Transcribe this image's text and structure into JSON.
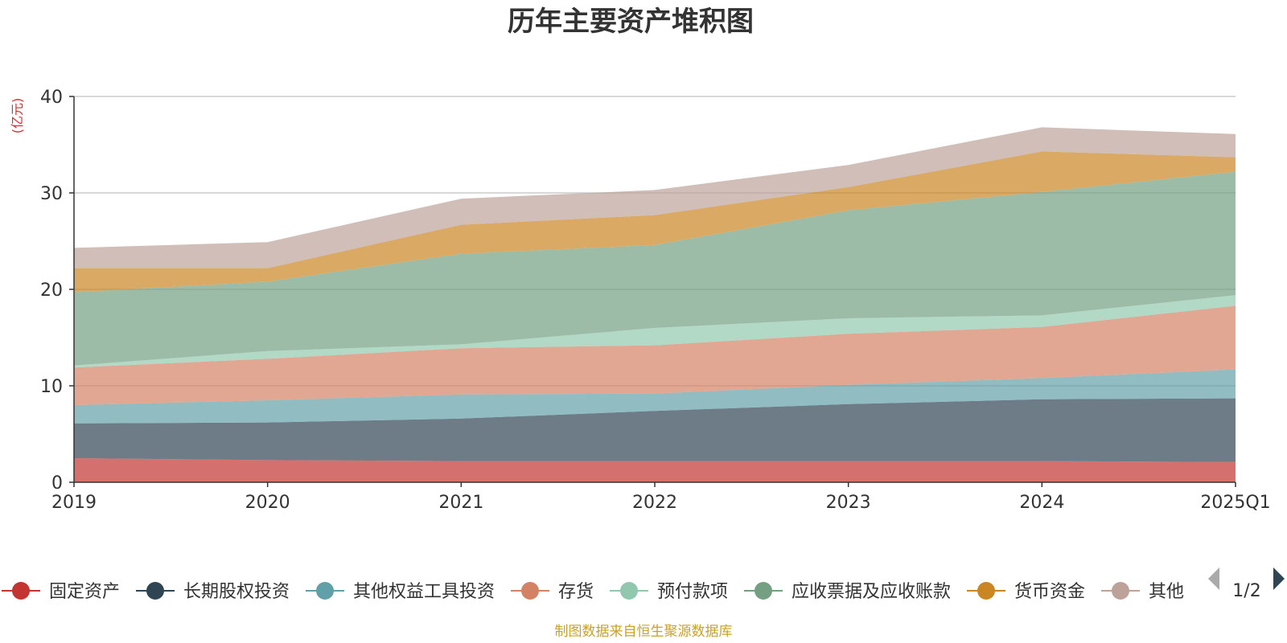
{
  "chart_data": {
    "type": "area",
    "stacked": true,
    "title": "历年主要资产堆积图",
    "unit_label": "(亿元)",
    "categories": [
      "2019",
      "2020",
      "2021",
      "2022",
      "2023",
      "2024",
      "2025Q1"
    ],
    "ylim": [
      0,
      40
    ],
    "y_ticks": [
      0,
      10,
      20,
      30,
      40
    ],
    "grid": true,
    "series": [
      {
        "name": "固定资产",
        "values": [
          2.5,
          2.3,
          2.2,
          2.2,
          2.2,
          2.2,
          2.1
        ],
        "color": "#c23531"
      },
      {
        "name": "长期股权投资",
        "values": [
          3.6,
          3.9,
          4.4,
          5.2,
          5.9,
          6.4,
          6.6
        ],
        "color": "#2f4554"
      },
      {
        "name": "其他权益工具投资",
        "values": [
          1.9,
          2.3,
          2.5,
          1.8,
          2.0,
          2.2,
          3.0
        ],
        "color": "#61a0a8"
      },
      {
        "name": "存货",
        "values": [
          3.9,
          4.3,
          4.8,
          5.0,
          5.3,
          5.3,
          6.6
        ],
        "color": "#d48265"
      },
      {
        "name": "预付款项",
        "values": [
          0.2,
          0.8,
          0.4,
          1.8,
          1.6,
          1.2,
          1.1
        ],
        "color": "#91c7ae"
      },
      {
        "name": "应收票据及应收账款",
        "values": [
          7.6,
          7.2,
          9.4,
          8.6,
          11.2,
          12.8,
          12.8
        ],
        "color": "#749f83"
      },
      {
        "name": "货币资金",
        "values": [
          2.5,
          1.4,
          3.0,
          3.1,
          2.4,
          4.2,
          1.5
        ],
        "color": "#ca8622"
      },
      {
        "name": "其他",
        "values": [
          2.1,
          2.7,
          2.7,
          2.6,
          2.3,
          2.5,
          2.4
        ],
        "color": "#bda29a"
      }
    ],
    "legend_position": "bottom",
    "legend_page": "1/2",
    "source": "制图数据来自恒生聚源数据库"
  },
  "colors": {
    "axis": "#333333",
    "grid": "#cccccc",
    "source_text": "#c9a227",
    "pager_active": "#2f4554",
    "pager_inactive": "#aaaaaa"
  }
}
